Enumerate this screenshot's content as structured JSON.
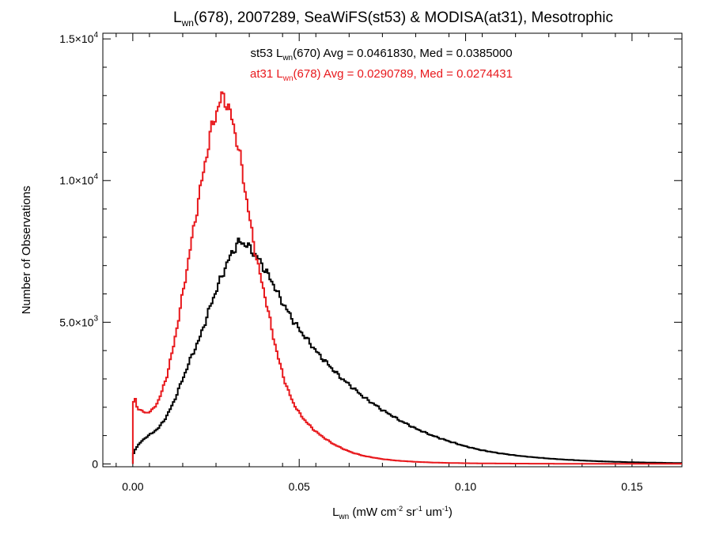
{
  "chart_data": {
    "type": "line",
    "title": {
      "base": "L",
      "sub": "wn",
      "rest": "(678), 2007289, SeaWiFS(st53) & MODISA(at31), Mesotrophic"
    },
    "xlabel": {
      "base": "L",
      "sub": "wn",
      "open": " (mW cm",
      "sup1": "-2",
      "mid1": " sr",
      "sup2": "-1",
      "mid2": " um",
      "sup3": "-1",
      "close": ")"
    },
    "ylabel": "Number of Observations",
    "xlim": [
      -0.009,
      0.165
    ],
    "ylim": [
      -100,
      15200
    ],
    "xticks": [
      {
        "value": 0.0,
        "label": "0.00"
      },
      {
        "value": 0.05,
        "label": "0.05"
      },
      {
        "value": 0.1,
        "label": "0.10"
      },
      {
        "value": 0.15,
        "label": "0.15"
      }
    ],
    "yticks": [
      {
        "value": 0,
        "mant": "0",
        "exp": ""
      },
      {
        "value": 5000,
        "mant": "5.0×10",
        "exp": "3"
      },
      {
        "value": 10000,
        "mant": "1.0×10",
        "exp": "4"
      },
      {
        "value": 15000,
        "mant": "1.5×10",
        "exp": "4"
      }
    ],
    "annotations": [
      {
        "pre": "st53 L",
        "sub": "wn",
        "post": "(670) Avg = 0.0461830, Med = 0.0385000",
        "color": "#000000"
      },
      {
        "pre": "at31 L",
        "sub": "wn",
        "post": "(678) Avg = 0.0290789, Med = 0.0274431",
        "color": "#e8191d"
      }
    ],
    "series": [
      {
        "name": "st53",
        "color": "#000000",
        "points": [
          [
            0.0,
            0
          ],
          [
            0.0003,
            450
          ],
          [
            0.002,
            720
          ],
          [
            0.004,
            950
          ],
          [
            0.006,
            1100
          ],
          [
            0.008,
            1300
          ],
          [
            0.01,
            1650
          ],
          [
            0.012,
            2100
          ],
          [
            0.014,
            2700
          ],
          [
            0.016,
            3300
          ],
          [
            0.018,
            3900
          ],
          [
            0.02,
            4400
          ],
          [
            0.022,
            5100
          ],
          [
            0.024,
            5800
          ],
          [
            0.026,
            6400
          ],
          [
            0.028,
            7000
          ],
          [
            0.03,
            7500
          ],
          [
            0.032,
            7850
          ],
          [
            0.034,
            7750
          ],
          [
            0.036,
            7500
          ],
          [
            0.038,
            7200
          ],
          [
            0.04,
            6800
          ],
          [
            0.042,
            6400
          ],
          [
            0.044,
            5900
          ],
          [
            0.046,
            5500
          ],
          [
            0.048,
            5100
          ],
          [
            0.05,
            4750
          ],
          [
            0.052,
            4450
          ],
          [
            0.054,
            4150
          ],
          [
            0.056,
            3850
          ],
          [
            0.058,
            3600
          ],
          [
            0.06,
            3350
          ],
          [
            0.062,
            3100
          ],
          [
            0.064,
            2900
          ],
          [
            0.066,
            2700
          ],
          [
            0.068,
            2500
          ],
          [
            0.07,
            2300
          ],
          [
            0.072,
            2150
          ],
          [
            0.075,
            1900
          ],
          [
            0.078,
            1700
          ],
          [
            0.08,
            1550
          ],
          [
            0.085,
            1250
          ],
          [
            0.09,
            1000
          ],
          [
            0.095,
            800
          ],
          [
            0.1,
            620
          ],
          [
            0.105,
            480
          ],
          [
            0.11,
            380
          ],
          [
            0.115,
            300
          ],
          [
            0.12,
            240
          ],
          [
            0.125,
            190
          ],
          [
            0.13,
            150
          ],
          [
            0.135,
            120
          ],
          [
            0.14,
            95
          ],
          [
            0.145,
            75
          ],
          [
            0.15,
            60
          ],
          [
            0.155,
            48
          ],
          [
            0.16,
            38
          ],
          [
            0.165,
            30
          ]
        ]
      },
      {
        "name": "at31",
        "color": "#e8191d",
        "points": [
          [
            0.0,
            0
          ],
          [
            0.0003,
            2600
          ],
          [
            0.001,
            2100
          ],
          [
            0.002,
            1900
          ],
          [
            0.004,
            1800
          ],
          [
            0.006,
            1900
          ],
          [
            0.008,
            2300
          ],
          [
            0.01,
            3000
          ],
          [
            0.012,
            4000
          ],
          [
            0.014,
            5300
          ],
          [
            0.016,
            6700
          ],
          [
            0.018,
            8100
          ],
          [
            0.02,
            9500
          ],
          [
            0.022,
            10800
          ],
          [
            0.024,
            12000
          ],
          [
            0.026,
            12700
          ],
          [
            0.027,
            13000
          ],
          [
            0.028,
            12800
          ],
          [
            0.03,
            12100
          ],
          [
            0.032,
            11000
          ],
          [
            0.034,
            9500
          ],
          [
            0.036,
            8000
          ],
          [
            0.038,
            6800
          ],
          [
            0.04,
            5800
          ],
          [
            0.042,
            4600
          ],
          [
            0.044,
            3600
          ],
          [
            0.046,
            2800
          ],
          [
            0.048,
            2200
          ],
          [
            0.05,
            1800
          ],
          [
            0.052,
            1500
          ],
          [
            0.054,
            1250
          ],
          [
            0.056,
            1050
          ],
          [
            0.058,
            880
          ],
          [
            0.06,
            720
          ],
          [
            0.062,
            600
          ],
          [
            0.064,
            490
          ],
          [
            0.066,
            400
          ],
          [
            0.068,
            330
          ],
          [
            0.07,
            270
          ],
          [
            0.075,
            170
          ],
          [
            0.08,
            110
          ],
          [
            0.085,
            75
          ],
          [
            0.09,
            50
          ],
          [
            0.095,
            35
          ],
          [
            0.1,
            25
          ],
          [
            0.11,
            15
          ],
          [
            0.12,
            10
          ],
          [
            0.13,
            6
          ],
          [
            0.14,
            4
          ],
          [
            0.15,
            3
          ],
          [
            0.16,
            2
          ],
          [
            0.165,
            2
          ]
        ]
      }
    ]
  }
}
